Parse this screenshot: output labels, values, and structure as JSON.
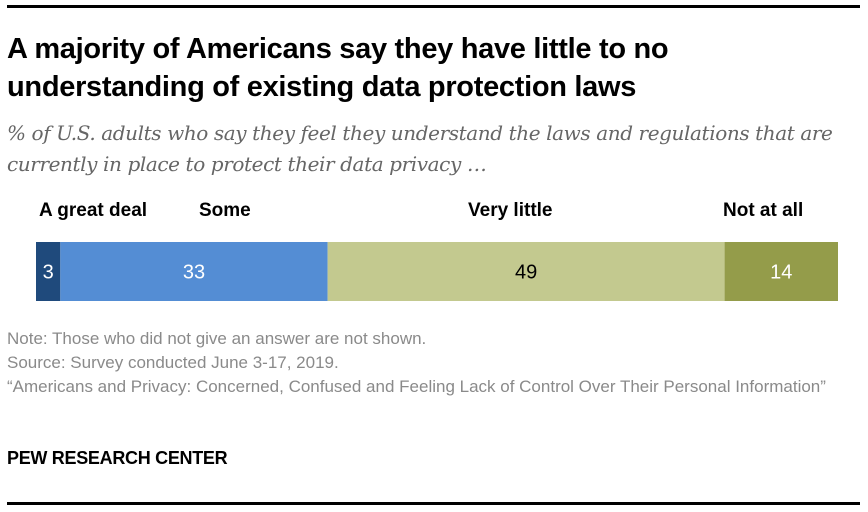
{
  "header": {
    "title": "A majority of Americans say they have little to no understanding of existing data protection laws",
    "subtitle": "% of U.S. adults who say they feel they understand the laws and regulations that are currently in place to protect their data privacy …"
  },
  "chart_data": {
    "type": "bar",
    "orientation": "horizontal-stacked",
    "title": "A majority of Americans say they have little to no understanding of existing data protection laws",
    "subtitle": "% of U.S. adults who say they feel they understand the laws and regulations that are currently in place to protect their data privacy …",
    "categories": [
      "A great deal",
      "Some",
      "Very little",
      "Not at all"
    ],
    "values": [
      3,
      33,
      49,
      14
    ],
    "colors": [
      "#1f4a7c",
      "#548dd4",
      "#c3c98f",
      "#949c4a"
    ],
    "label_colors": [
      "#ffffff",
      "#ffffff",
      "#000000",
      "#ffffff"
    ],
    "xlabel": "",
    "ylabel": "",
    "grid": false,
    "legend": "category labels above bar segments"
  },
  "footer": {
    "note": "Note: Those who did not give an answer are not shown.",
    "source": "Source: Survey conducted June 3-17, 2019.",
    "report_title": "“Americans and Privacy: Concerned, Confused and Feeling Lack of Control Over Their Personal Information”",
    "brand": "PEW RESEARCH CENTER"
  }
}
